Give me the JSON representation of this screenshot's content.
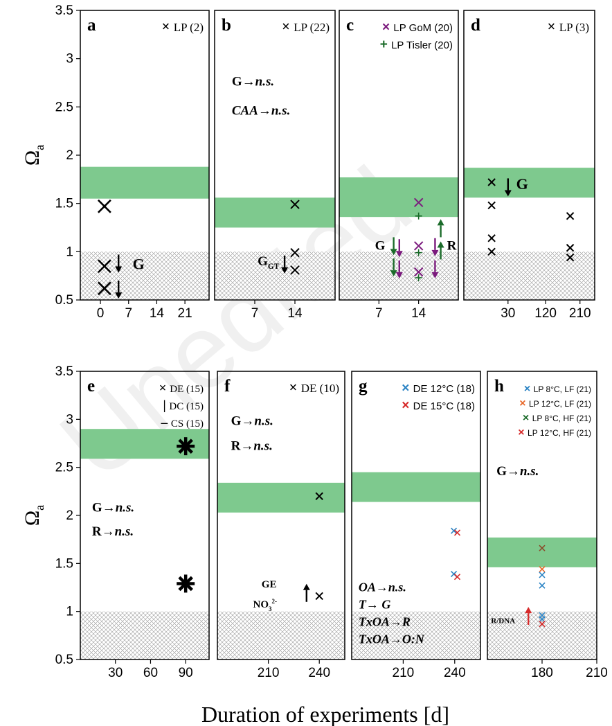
{
  "watermark": "Unedited",
  "figure": {
    "ylabel": "Ω",
    "ylabel_sub": "a",
    "xlabel": "Duration of experiments [d]",
    "yticks": [
      "0.5",
      "1",
      "1.5",
      "2",
      "2.5",
      "3",
      "3.5"
    ]
  },
  "colors": {
    "band": "#7ec98e",
    "black": "#000000",
    "purple": "#7b1a7d",
    "green": "#1b6b2a",
    "blue": "#2a83c4",
    "orange": "#e8692b",
    "red": "#d62a2a",
    "darkred": "#8a4b2a",
    "hatch": "#888888"
  },
  "chart_data": [
    {
      "panel": "a",
      "type": "scatter",
      "ylim": [
        0.5,
        3.5
      ],
      "xlim": [
        -5,
        27
      ],
      "xticks": [
        "0",
        "7",
        "14",
        "21"
      ],
      "xtick_values": [
        0,
        7,
        14,
        21
      ],
      "band": [
        1.55,
        1.88
      ],
      "hatch_below": 1.0,
      "legend": [
        {
          "symbol": "×",
          "text": "LP (2)",
          "color": "#000000"
        }
      ],
      "points": [
        {
          "x": 1,
          "y": 1.47,
          "s": "big",
          "c": "#000000"
        },
        {
          "x": 1,
          "y": 0.85,
          "s": "big",
          "c": "#000000"
        },
        {
          "x": 1,
          "y": 0.62,
          "s": "big",
          "c": "#000000"
        }
      ],
      "arrows": [
        {
          "x": 4.5,
          "y": 0.97,
          "dir": "down",
          "c": "#000000"
        },
        {
          "x": 4.5,
          "y": 0.7,
          "dir": "down",
          "c": "#000000"
        }
      ],
      "labels": [
        {
          "text": "G",
          "x": 8,
          "y": 0.82,
          "bold": true,
          "size": 22
        }
      ]
    },
    {
      "panel": "b",
      "type": "scatter",
      "ylim": [
        0.5,
        3.5
      ],
      "xlim": [
        0,
        21
      ],
      "xticks": [
        "7",
        "14"
      ],
      "xtick_values": [
        7,
        14
      ],
      "band": [
        1.25,
        1.56
      ],
      "hatch_below": 1.0,
      "legend": [
        {
          "symbol": "×",
          "text": "LP (22)",
          "color": "#000000"
        }
      ],
      "points": [
        {
          "x": 14,
          "y": 1.49,
          "s": "mid",
          "c": "#000000"
        },
        {
          "x": 14,
          "y": 0.99,
          "s": "mid",
          "c": "#000000"
        },
        {
          "x": 14,
          "y": 0.81,
          "s": "mid",
          "c": "#000000"
        }
      ],
      "arrows": [
        {
          "x": 12.2,
          "y": 0.96,
          "dir": "down",
          "c": "#000000"
        }
      ],
      "labels": [
        {
          "text": "G→n.s.",
          "x": 3,
          "y": 2.72,
          "bold": true,
          "italicTail": true,
          "size": 19
        },
        {
          "text": "CAA→n.s.",
          "x": 3,
          "y": 2.42,
          "bold": true,
          "italic": true,
          "size": 19
        },
        {
          "text": "G",
          "sub": "GT",
          "x": 7.5,
          "y": 0.86,
          "bold": true,
          "size": 19
        }
      ]
    },
    {
      "panel": "c",
      "type": "scatter",
      "ylim": [
        0.5,
        3.5
      ],
      "xlim": [
        0,
        21
      ],
      "xticks": [
        "7",
        "14"
      ],
      "xtick_values": [
        7,
        14
      ],
      "band": [
        1.36,
        1.77
      ],
      "hatch_below": 1.0,
      "legend": [
        {
          "symbol": "×",
          "text": "LP  GoM (20)",
          "color": "#7b1a7d"
        },
        {
          "symbol": "+",
          "text": "LP Tisler (20)",
          "color": "#1b6b2a"
        }
      ],
      "points": [
        {
          "x": 14,
          "y": 1.51,
          "s": "mid",
          "c": "#7b1a7d"
        },
        {
          "x": 14,
          "y": 1.37,
          "s": "plus",
          "c": "#1b6b2a"
        },
        {
          "x": 14,
          "y": 1.06,
          "s": "mid",
          "c": "#7b1a7d"
        },
        {
          "x": 14,
          "y": 0.99,
          "s": "plus",
          "c": "#1b6b2a"
        },
        {
          "x": 14,
          "y": 0.79,
          "s": "mid",
          "c": "#7b1a7d"
        },
        {
          "x": 14,
          "y": 0.73,
          "s": "plus",
          "c": "#1b6b2a"
        }
      ],
      "arrows": [
        {
          "x": 9.6,
          "y": 1.15,
          "dir": "down",
          "c": "#1b6b2a"
        },
        {
          "x": 10.6,
          "y": 1.13,
          "dir": "down",
          "c": "#7b1a7d"
        },
        {
          "x": 9.6,
          "y": 0.93,
          "dir": "down",
          "c": "#1b6b2a"
        },
        {
          "x": 10.6,
          "y": 0.91,
          "dir": "down",
          "c": "#7b1a7d"
        },
        {
          "x": 16.9,
          "y": 1.14,
          "dir": "down",
          "c": "#7b1a7d"
        },
        {
          "x": 17.9,
          "y": 0.92,
          "dir": "up",
          "c": "#1b6b2a"
        },
        {
          "x": 16.9,
          "y": 0.91,
          "dir": "down",
          "c": "#7b1a7d"
        },
        {
          "x": 17.9,
          "y": 1.15,
          "dir": "up",
          "c": "#1b6b2a"
        }
      ],
      "labels": [
        {
          "text": "G",
          "x": 6.3,
          "y": 1.02,
          "bold": true,
          "size": 19
        },
        {
          "text": "R",
          "x": 19,
          "y": 1.02,
          "bold": true,
          "size": 19
        }
      ]
    },
    {
      "panel": "d",
      "type": "scatter",
      "ylim": [
        0.5,
        3.5
      ],
      "xlim": [
        0,
        8
      ],
      "xticks": [
        "30",
        "120",
        "210"
      ],
      "xtick_values": [
        2.7,
        5.0,
        7.1
      ],
      "band": [
        1.56,
        1.87
      ],
      "hatch_below": 1.0,
      "legend": [
        {
          "symbol": "×",
          "text": "LP (3)",
          "color": "#000000"
        }
      ],
      "points": [
        {
          "x": 1.7,
          "y": 1.72,
          "s": "sm",
          "c": "#000000"
        },
        {
          "x": 1.7,
          "y": 1.48,
          "s": "sm",
          "c": "#000000"
        },
        {
          "x": 1.7,
          "y": 1.14,
          "s": "sm",
          "c": "#000000"
        },
        {
          "x": 1.7,
          "y": 1.0,
          "s": "sm",
          "c": "#000000"
        },
        {
          "x": 6.5,
          "y": 1.37,
          "s": "sm",
          "c": "#000000"
        },
        {
          "x": 6.5,
          "y": 1.04,
          "s": "sm",
          "c": "#000000"
        },
        {
          "x": 6.5,
          "y": 0.94,
          "s": "sm",
          "c": "#000000"
        }
      ],
      "arrows": [
        {
          "x": 2.7,
          "y": 1.76,
          "dir": "down",
          "c": "#000000"
        }
      ],
      "labels": [
        {
          "text": "G",
          "x": 3.2,
          "y": 1.65,
          "bold": true,
          "size": 22
        }
      ]
    },
    {
      "panel": "e",
      "type": "scatter",
      "ylim": [
        0.5,
        3.5
      ],
      "xlim": [
        0,
        110
      ],
      "xticks": [
        "30",
        "60",
        "90"
      ],
      "xtick_values": [
        30,
        60,
        90
      ],
      "band": [
        2.59,
        2.9
      ],
      "hatch_below": 1.0,
      "legend": [
        {
          "symbol": "×",
          "text": "DE (15)",
          "color": "#000000"
        },
        {
          "symbol": "|",
          "text": "DC (15)",
          "color": "#000000"
        },
        {
          "symbol": "–",
          "text": "CS (15)",
          "color": "#000000"
        }
      ],
      "points": [
        {
          "x": 90,
          "y": 2.72,
          "s": "star",
          "c": "#000000"
        },
        {
          "x": 90,
          "y": 1.29,
          "s": "star",
          "c": "#000000"
        }
      ],
      "arrows": [],
      "labels": [
        {
          "text": "G→n.s.",
          "x": 10,
          "y": 2.04,
          "bold": true,
          "italicTail": true,
          "size": 19
        },
        {
          "text": "R→n.s.",
          "x": 10,
          "y": 1.79,
          "bold": true,
          "italicTail": true,
          "size": 19
        }
      ]
    },
    {
      "panel": "f",
      "type": "scatter",
      "ylim": [
        0.5,
        3.5
      ],
      "xlim": [
        180,
        255
      ],
      "xticks": [
        "210",
        "240"
      ],
      "xtick_values": [
        210,
        240
      ],
      "band": [
        2.03,
        2.34
      ],
      "hatch_below": 1.0,
      "legend": [
        {
          "symbol": "×",
          "text": "DE (10)",
          "color": "#000000"
        }
      ],
      "points": [
        {
          "x": 240,
          "y": 2.2,
          "s": "sm",
          "c": "#000000"
        },
        {
          "x": 240,
          "y": 1.16,
          "s": "sm",
          "c": "#000000"
        }
      ],
      "arrows": [
        {
          "x": 232.5,
          "y": 1.1,
          "dir": "up",
          "c": "#000000"
        }
      ],
      "labels": [
        {
          "text": "G→n.s.",
          "x": 188,
          "y": 2.94,
          "bold": true,
          "italicTail": true,
          "size": 19
        },
        {
          "text": "R→n.s.",
          "x": 188,
          "y": 2.68,
          "bold": true,
          "italicTail": true,
          "size": 19
        },
        {
          "text": "GE",
          "x": 206,
          "y": 1.25,
          "bold": true,
          "size": 15
        },
        {
          "text": "NO",
          "sub": "3",
          "sup": "2-",
          "x": 201,
          "y": 1.04,
          "bold": true,
          "size": 15
        }
      ]
    },
    {
      "panel": "g",
      "type": "scatter",
      "ylim": [
        0.5,
        3.5
      ],
      "xlim": [
        180,
        255
      ],
      "xticks": [
        "210",
        "240"
      ],
      "xtick_values": [
        210,
        240
      ],
      "band": [
        2.14,
        2.45
      ],
      "hatch_below": 1.0,
      "legend": [
        {
          "symbol": "×",
          "text": "DE 12°C (18)",
          "color": "#2a83c4"
        },
        {
          "symbol": "×",
          "text": "DE 15°C (18)",
          "color": "#d62a2a"
        }
      ],
      "points": [
        {
          "x": 239.5,
          "y": 1.84,
          "s": "tiny",
          "c": "#2a83c4"
        },
        {
          "x": 241.5,
          "y": 1.82,
          "s": "tiny",
          "c": "#d62a2a"
        },
        {
          "x": 239.5,
          "y": 1.39,
          "s": "tiny",
          "c": "#2a83c4"
        },
        {
          "x": 241.5,
          "y": 1.36,
          "s": "tiny",
          "c": "#d62a2a"
        }
      ],
      "arrows": [],
      "labels": [
        {
          "text": "OA→n.s.",
          "x": 184,
          "y": 1.21,
          "bold": true,
          "italic": true,
          "size": 18
        },
        {
          "text": "T→ G",
          "x": 184,
          "y": 1.03,
          "bold": true,
          "italic": true,
          "size": 18
        },
        {
          "text": "TxOA→R",
          "x": 184,
          "y": 0.85,
          "bold": true,
          "italic": true,
          "size": 18
        },
        {
          "text": "TxOA→O:N",
          "x": 184,
          "y": 0.67,
          "bold": true,
          "italic": true,
          "size": 18
        }
      ]
    },
    {
      "panel": "h",
      "type": "scatter",
      "ylim": [
        0.5,
        3.5
      ],
      "xlim": [
        150,
        210
      ],
      "xticks": [
        "180",
        "210"
      ],
      "xtick_values": [
        180,
        210
      ],
      "band": [
        1.46,
        1.77
      ],
      "hatch_below": 1.0,
      "legend": [
        {
          "symbol": "×",
          "text": "LP 8°C, LF (21)",
          "color": "#2a83c4"
        },
        {
          "symbol": "×",
          "text": "LP 12°C, LF (21)",
          "color": "#e8692b"
        },
        {
          "symbol": "×",
          "text": "LP 8°C, HF (21)",
          "color": "#1b6b2a"
        },
        {
          "symbol": "×",
          "text": "LP 12°C, HF (21)",
          "color": "#d62a2a"
        }
      ],
      "points": [
        {
          "x": 180,
          "y": 1.66,
          "s": "tiny",
          "c": "#8a4b2a"
        },
        {
          "x": 180,
          "y": 1.44,
          "s": "tiny",
          "c": "#e8692b"
        },
        {
          "x": 180,
          "y": 1.38,
          "s": "tiny",
          "c": "#2a83c4"
        },
        {
          "x": 180,
          "y": 1.27,
          "s": "tiny",
          "c": "#2a83c4"
        },
        {
          "x": 180,
          "y": 0.96,
          "s": "tiny",
          "c": "#2a83c4"
        },
        {
          "x": 180,
          "y": 0.92,
          "s": "tiny",
          "c": "#2a83c4"
        },
        {
          "x": 180,
          "y": 0.87,
          "s": "tiny",
          "c": "#d62a2a"
        }
      ],
      "arrows": [
        {
          "x": 172.5,
          "y": 0.86,
          "dir": "up",
          "c": "#d62a2a"
        }
      ],
      "labels": [
        {
          "text": "G→n.s.",
          "x": 155,
          "y": 2.42,
          "bold": true,
          "italicTail": true,
          "size": 19
        },
        {
          "text": "R/DNA",
          "x": 152,
          "y": 0.88,
          "bold": true,
          "size": 11
        }
      ]
    }
  ]
}
